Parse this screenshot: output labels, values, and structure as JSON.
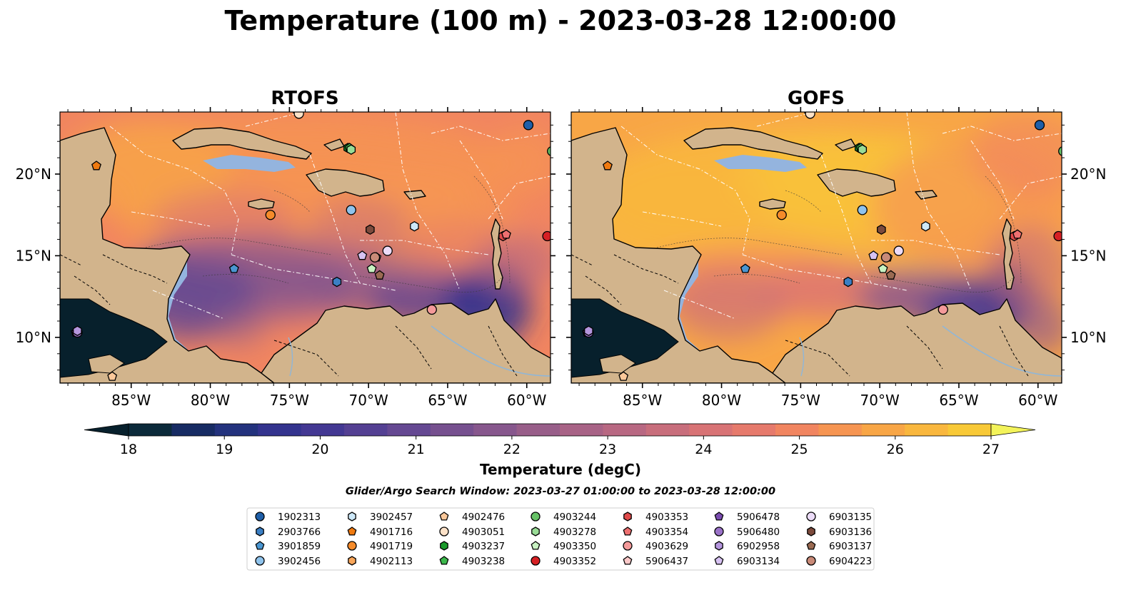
{
  "title": "Temperature (100 m) - 2023-03-28 12:00:00",
  "panels": [
    {
      "title": "RTOFS",
      "scheme": "rtofs"
    },
    {
      "title": "GOFS",
      "scheme": "gofs"
    }
  ],
  "lon_ticks": [
    "85°W",
    "80°W",
    "75°W",
    "70°W",
    "65°W",
    "60°W"
  ],
  "lon_values": [
    -85,
    -80,
    -75,
    -70,
    -65,
    -60
  ],
  "lat_ticks": [
    "20°N",
    "15°N",
    "10°N"
  ],
  "lat_values": [
    20,
    15,
    10
  ],
  "extent": {
    "lon_min": -89.5,
    "lon_max": -58.5,
    "lat_min": 7.2,
    "lat_max": 23.8
  },
  "colorbar": {
    "label": "Temperature (degC)",
    "min": 18,
    "max": 27,
    "step": 0.5,
    "ticks": [
      "18",
      "19",
      "20",
      "21",
      "22",
      "23",
      "24",
      "25",
      "26",
      "27"
    ],
    "colors": [
      "#0b2a3a",
      "#172b63",
      "#23327d",
      "#33338e",
      "#433893",
      "#544093",
      "#654892",
      "#76508f",
      "#87578d",
      "#985e89",
      "#a86386",
      "#b86882",
      "#c86e7c",
      "#d87375",
      "#e67a6c",
      "#f18560",
      "#f69552",
      "#f8a646",
      "#f9b73e",
      "#f8c937"
    ],
    "under_color": "#07202c",
    "over_color": "#f3f35a"
  },
  "search_window": "Glider/Argo Search Window: 2023-03-27 01:00:00 to 2023-03-28 12:00:00",
  "floats": [
    {
      "id": "1902313",
      "color": "#1f5fa8",
      "marker": "circle",
      "lon": -59.9,
      "lat": 23.0
    },
    {
      "id": "2903766",
      "color": "#3b7fc4",
      "marker": "hexagon",
      "lon": -72.0,
      "lat": 13.4
    },
    {
      "id": "3901859",
      "color": "#4a96d1",
      "marker": "pentagon",
      "lon": -78.5,
      "lat": 14.2
    },
    {
      "id": "3902456",
      "color": "#8fc3ec",
      "marker": "circle",
      "lon": -71.1,
      "lat": 17.8
    },
    {
      "id": "3902457",
      "color": "#cde8f8",
      "marker": "hexagon",
      "lon": -67.1,
      "lat": 16.8
    },
    {
      "id": "4901716",
      "color": "#f07a10",
      "marker": "pentagon",
      "lon": -87.2,
      "lat": 20.5
    },
    {
      "id": "4901719",
      "color": "#f58b2a",
      "marker": "circle",
      "lon": -76.2,
      "lat": 17.5
    },
    {
      "id": "4902113",
      "color": "#f8a65a",
      "marker": "hexagon",
      "lon": -74.5,
      "lat": 23.9
    },
    {
      "id": "4902476",
      "color": "#fbc89a",
      "marker": "pentagon",
      "lon": -86.2,
      "lat": 7.6
    },
    {
      "id": "4903051",
      "color": "#fde2c8",
      "marker": "circle",
      "lon": -74.4,
      "lat": 23.7
    },
    {
      "id": "4903237",
      "color": "#1a9a2a",
      "marker": "hexagon",
      "lon": -71.3,
      "lat": 21.6
    },
    {
      "id": "4903238",
      "color": "#3cb84c",
      "marker": "pentagon",
      "lon": -71.2,
      "lat": 21.6
    },
    {
      "id": "4903244",
      "color": "#66c266",
      "marker": "circle",
      "lon": -58.4,
      "lat": 21.4
    },
    {
      "id": "4903278",
      "color": "#99dc96",
      "marker": "hexagon",
      "lon": -71.1,
      "lat": 21.5
    },
    {
      "id": "4903350",
      "color": "#c8f2c2",
      "marker": "pentagon",
      "lon": -69.8,
      "lat": 14.2
    },
    {
      "id": "4903352",
      "color": "#d62024",
      "marker": "circle",
      "lon": -58.7,
      "lat": 16.2
    },
    {
      "id": "4903353",
      "color": "#e04a4a",
      "marker": "hexagon",
      "lon": -61.5,
      "lat": 16.2
    },
    {
      "id": "4903354",
      "color": "#ee7070",
      "marker": "pentagon",
      "lon": -61.3,
      "lat": 16.3
    },
    {
      "id": "4903629",
      "color": "#f49a9a",
      "marker": "circle",
      "lon": -66.0,
      "lat": 11.7
    },
    {
      "id": "5906437",
      "color": "#fbc8c8",
      "marker": "pentagon",
      "lon": -69.5,
      "lat": 14.9
    },
    {
      "id": "5906478",
      "color": "#7a4cb0",
      "marker": "pentagon",
      "lon": -88.5,
      "lat": 10.3
    },
    {
      "id": "5906480",
      "color": "#9a72c8",
      "marker": "circle",
      "lon": -88.4,
      "lat": 10.3
    },
    {
      "id": "6902958",
      "color": "#b596de",
      "marker": "hexagon",
      "lon": -88.4,
      "lat": 10.4
    },
    {
      "id": "6903134",
      "color": "#d7c2f2",
      "marker": "pentagon",
      "lon": -70.4,
      "lat": 15.0
    },
    {
      "id": "6903135",
      "color": "#ecdcf8",
      "marker": "circle",
      "lon": -68.8,
      "lat": 15.3
    },
    {
      "id": "6903136",
      "color": "#7c4a3c",
      "marker": "hexagon",
      "lon": -69.9,
      "lat": 16.6
    },
    {
      "id": "6903137",
      "color": "#9a6a52",
      "marker": "pentagon",
      "lon": -69.3,
      "lat": 13.8
    },
    {
      "id": "6904223",
      "color": "#c98a78",
      "marker": "circle",
      "lon": -69.6,
      "lat": 14.9
    }
  ]
}
